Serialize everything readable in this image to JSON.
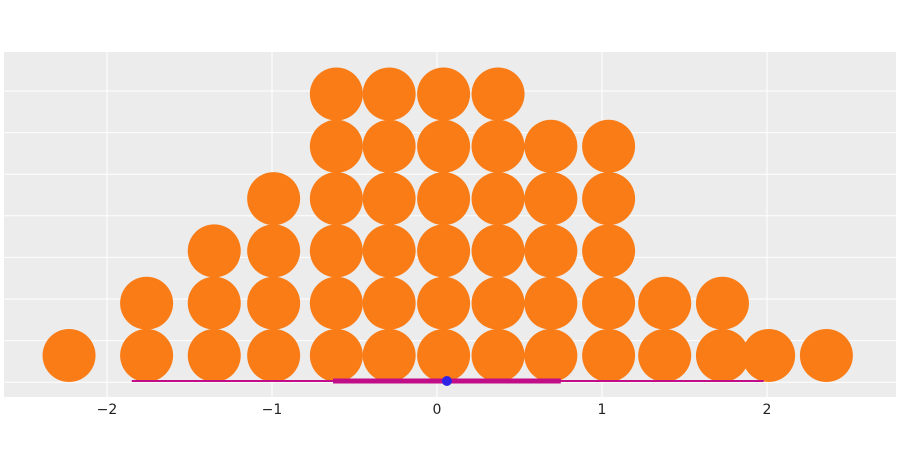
{
  "chart_data": {
    "type": "dot",
    "title": "",
    "xlabel": "",
    "ylabel": "",
    "xlim": [
      -2.6,
      2.8
    ],
    "x_ticks": [
      -2,
      -1,
      0,
      1,
      2
    ],
    "x_tick_labels": [
      "−2",
      "−1",
      "0",
      "1",
      "2"
    ],
    "y_gridlines": 8,
    "grid": true,
    "legend": "none",
    "columns": [
      {
        "x": -2.23,
        "count": 1
      },
      {
        "x": -1.76,
        "count": 2
      },
      {
        "x": -1.35,
        "count": 3
      },
      {
        "x": -0.99,
        "count": 4
      },
      {
        "x": -0.61,
        "count": 6
      },
      {
        "x": -0.29,
        "count": 6
      },
      {
        "x": 0.04,
        "count": 6
      },
      {
        "x": 0.37,
        "count": 6
      },
      {
        "x": 0.69,
        "count": 5
      },
      {
        "x": 1.04,
        "count": 5
      },
      {
        "x": 1.38,
        "count": 2
      },
      {
        "x": 1.73,
        "count": 2
      },
      {
        "x": 2.01,
        "count": 1
      },
      {
        "x": 2.36,
        "count": 1
      }
    ],
    "interval": {
      "outer": [
        -1.85,
        1.98
      ],
      "inner": [
        -0.63,
        0.75
      ],
      "point": 0.06
    },
    "colors": {
      "dots": "#fa7c17",
      "interval_line": "#c20d89",
      "point": "#3023e8",
      "background": "#ececec",
      "grid": "#ffffff"
    }
  }
}
